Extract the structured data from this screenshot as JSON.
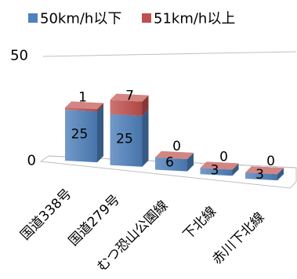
{
  "chart_data": {
    "type": "bar",
    "stacked": true,
    "three_d": true,
    "categories": [
      "国道338号",
      "国道279号",
      "むつ恐山公園線",
      "下北線",
      "赤川下北線"
    ],
    "series": [
      {
        "name": "50km/h以下",
        "values": [
          25,
          25,
          6,
          3,
          3
        ],
        "color": "#4f81bd"
      },
      {
        "name": "51km/h以上",
        "values": [
          1,
          7,
          0,
          0,
          0
        ],
        "color": "#c0504d"
      }
    ],
    "ylim": [
      0,
      50
    ],
    "yticks": [
      0,
      50
    ],
    "grid": true,
    "legend": "top",
    "data_labels": true
  }
}
